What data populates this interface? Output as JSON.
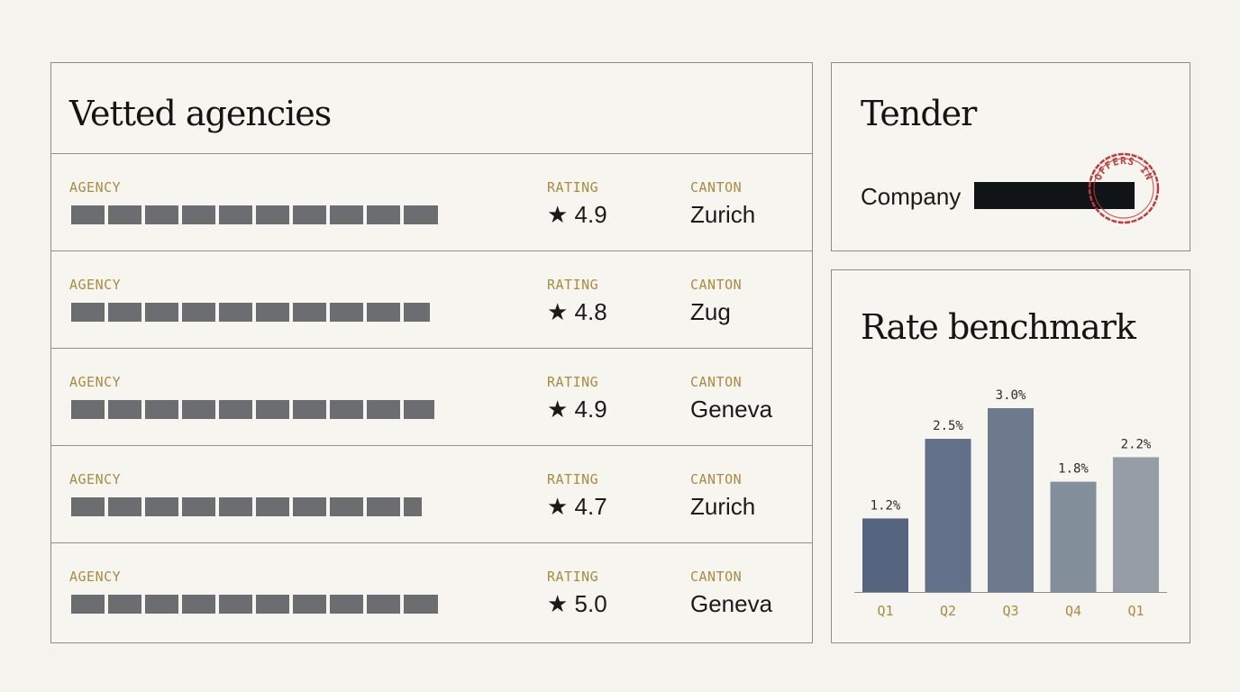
{
  "agencies": {
    "title": "Vetted agencies",
    "rows": [
      {
        "agency_label": "AGENCY",
        "rating_label": "RATING",
        "canton_label": "CANTON",
        "rating": "★ 4.9",
        "canton": "Zurich",
        "blocks": 10
      },
      {
        "agency_label": "AGENCY",
        "rating_label": "RATING",
        "canton_label": "CANTON",
        "rating": "★ 4.8",
        "canton": "Zug",
        "blocks": 10
      },
      {
        "agency_label": "AGENCY",
        "rating_label": "RATING",
        "canton_label": "CANTON",
        "rating": "★ 4.9",
        "canton": "Geneva",
        "blocks": 10
      },
      {
        "agency_label": "AGENCY",
        "rating_label": "RATING",
        "canton_label": "CANTON",
        "rating": "★ 4.7",
        "canton": "Zurich",
        "blocks": 10
      },
      {
        "agency_label": "AGENCY",
        "rating_label": "RATING",
        "canton_label": "CANTON",
        "rating": "★ 5.0",
        "canton": "Geneva",
        "blocks": 10
      }
    ]
  },
  "tender": {
    "title": "Tender",
    "company_label": "Company",
    "stamp_text": "OFFERS IN"
  },
  "benchmark": {
    "title": "Rate benchmark"
  },
  "chart_data": {
    "type": "bar",
    "categories": [
      "Q1",
      "Q2",
      "Q3",
      "Q4",
      "Q1"
    ],
    "values": [
      1.2,
      2.5,
      3.0,
      1.8,
      2.2
    ],
    "data_labels": [
      "1.2%",
      "2.5%",
      "3.0%",
      "1.8%",
      "2.2%"
    ],
    "ylim": [
      0,
      3.0
    ],
    "bar_colors": [
      "#55657f",
      "#627089",
      "#6d7a8d",
      "#848f9c",
      "#959ea7"
    ],
    "title": "",
    "xlabel": "",
    "ylabel": ""
  },
  "colors": {
    "accent": "#a98c3f",
    "stamp": "#c0393b",
    "redaction": "#111417",
    "placeholder_block": "#6b6d71"
  }
}
